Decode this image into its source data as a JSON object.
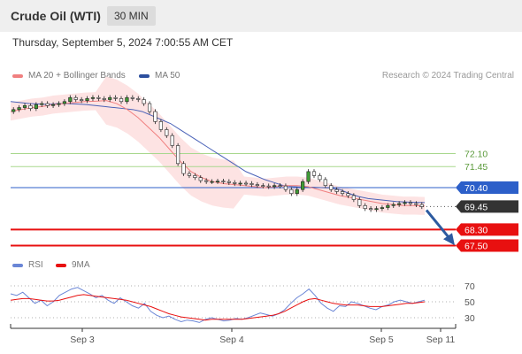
{
  "header": {
    "title": "Crude Oil (WTI)",
    "timeframe": "30 MIN",
    "timestamp": "Thursday, September 5, 2024 7:00:55 AM CET"
  },
  "credit": "Research © 2024 Trading Central",
  "legend": {
    "bollinger_label": "MA 20 + Bollinger Bands",
    "ma50_label": "MA 50",
    "rsi_label": "RSI",
    "rsi_ma_label": "9MA"
  },
  "colors": {
    "candle": "#3f9c35",
    "ma20": "#f08080",
    "ma50": "#4a62b8",
    "band_fill": "#fde3e3",
    "resistance": "#a8d88e",
    "pivot": "#2c5fc9",
    "support": "#e81010",
    "last_price": "#333333",
    "rsi": "#6a86d6",
    "rsi_ma": "#e81010",
    "arrow": "#2c5aa0"
  },
  "chart_data": [
    {
      "type": "candlestick",
      "x_ticks": [
        "Sep 3",
        "Sep 4",
        "Sep 5",
        "Sep 11"
      ],
      "ylim": [
        67.3,
        75.0
      ],
      "close_series_approx": [
        74.3,
        74.4,
        74.5,
        74.35,
        74.55,
        74.6,
        74.5,
        74.55,
        74.6,
        74.7,
        74.9,
        74.8,
        74.75,
        74.85,
        74.9,
        74.85,
        74.8,
        74.9,
        74.85,
        74.7,
        74.9,
        74.85,
        74.8,
        74.6,
        74.2,
        73.7,
        73.3,
        73.0,
        72.5,
        71.6,
        71.1,
        71.0,
        70.9,
        70.75,
        70.7,
        70.7,
        70.72,
        70.7,
        70.65,
        70.6,
        70.62,
        70.6,
        70.55,
        70.5,
        70.48,
        70.45,
        70.5,
        70.48,
        70.3,
        70.1,
        70.3,
        70.7,
        71.2,
        71.0,
        70.8,
        70.5,
        70.3,
        70.2,
        70.1,
        70.0,
        69.8,
        69.5,
        69.35,
        69.3,
        69.35,
        69.4,
        69.5,
        69.55,
        69.6,
        69.65,
        69.6,
        69.55,
        69.45
      ],
      "ma50_approx": [
        74.7,
        74.65,
        74.6,
        74.58,
        74.55,
        74.6,
        74.6,
        74.58,
        74.55,
        74.5,
        74.45,
        74.4,
        74.35,
        74.3,
        74.2,
        74.0,
        73.8,
        73.6,
        73.3,
        73.0,
        72.7,
        72.4,
        72.1,
        71.8,
        71.5,
        71.2,
        71.0,
        70.8,
        70.65,
        70.5,
        70.45,
        70.42,
        70.42,
        70.4,
        70.38,
        70.3,
        70.1,
        69.95,
        69.85,
        69.8,
        69.75,
        69.7,
        69.68,
        69.66,
        69.65
      ],
      "ma20_approx": [
        74.2,
        74.3,
        74.4,
        74.45,
        74.55,
        74.6,
        74.65,
        74.7,
        74.72,
        74.75,
        74.6,
        74.3,
        73.9,
        73.4,
        72.9,
        72.3,
        71.7,
        71.2,
        70.9,
        70.7,
        70.6,
        70.55,
        70.5,
        70.45,
        70.4,
        70.45,
        70.5,
        70.5,
        70.45,
        70.3,
        70.15,
        70.0,
        69.9,
        69.8,
        69.7,
        69.6,
        69.55,
        69.5,
        69.5,
        69.48
      ],
      "levels": [
        {
          "label": "72.10",
          "value": 72.1,
          "kind": "resistance"
        },
        {
          "label": "71.45",
          "value": 71.45,
          "kind": "resistance"
        },
        {
          "label": "70.40",
          "value": 70.4,
          "kind": "pivot"
        },
        {
          "label": "69.45",
          "value": 69.45,
          "kind": "last"
        },
        {
          "label": "68.30",
          "value": 68.3,
          "kind": "support"
        },
        {
          "label": "67.50",
          "value": 67.5,
          "kind": "support"
        }
      ],
      "forecast_arrow": {
        "from": 69.45,
        "to": 67.6,
        "direction": "down"
      },
      "grid": false
    },
    {
      "type": "line",
      "title": "",
      "ylim": [
        20,
        80
      ],
      "y_ticks": [
        70,
        50,
        30
      ],
      "series": [
        {
          "name": "RSI",
          "values": [
            60,
            58,
            62,
            55,
            48,
            52,
            45,
            50,
            58,
            62,
            66,
            68,
            64,
            60,
            55,
            58,
            52,
            48,
            55,
            50,
            45,
            42,
            48,
            38,
            33,
            30,
            32,
            28,
            25,
            27,
            26,
            24,
            28,
            30,
            28,
            26,
            27,
            29,
            28,
            30,
            33,
            36,
            34,
            32,
            35,
            40,
            48,
            55,
            60,
            66,
            58,
            48,
            42,
            38,
            45,
            44,
            50,
            48,
            45,
            42,
            40,
            44,
            46,
            50,
            52,
            50,
            48,
            50,
            52
          ]
        },
        {
          "name": "9MA",
          "values": [
            52,
            53,
            54,
            54,
            53,
            52,
            51,
            51,
            52,
            54,
            56,
            58,
            59,
            58,
            57,
            56,
            55,
            54,
            53,
            52,
            50,
            48,
            46,
            44,
            41,
            38,
            35,
            33,
            31,
            30,
            29,
            28,
            27,
            28,
            28,
            28,
            28,
            28,
            28,
            29,
            30,
            31,
            32,
            33,
            35,
            38,
            42,
            46,
            50,
            53,
            54,
            52,
            50,
            48,
            47,
            46,
            46,
            46,
            45,
            44,
            44,
            44,
            45,
            46,
            47,
            48,
            48,
            49,
            50
          ]
        }
      ]
    }
  ]
}
